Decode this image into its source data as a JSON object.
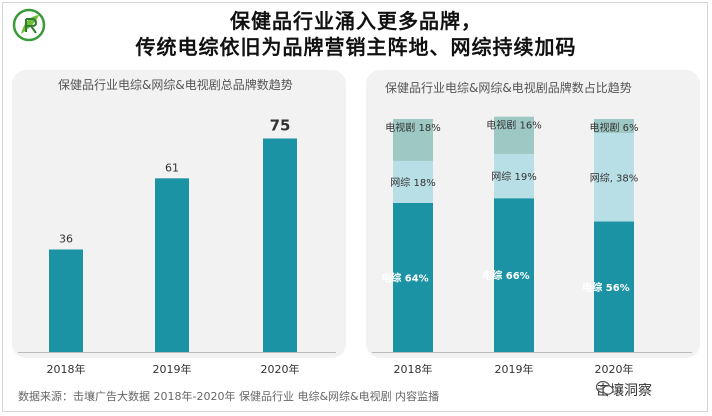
{
  "title_line1": "保健品行业涌入更多品牌，",
  "title_line2": "传统电综依旧为品牌营销主阵地、网综持续加码",
  "source": "数据来源：击壤广告大数据 2018年-2020年 保健品行业 电综&网综&电视剧 内容监播",
  "watermark": "击壤洞察",
  "colors": {
    "teal": "#1b93a4",
    "light": "#b9dfe6",
    "mid": "#9ec8c4",
    "panel": "#f2f2f2"
  },
  "chart_data": [
    {
      "type": "bar",
      "title": "保健品行业电综&网综&电视剧总品牌数趋势",
      "categories": [
        "2018年",
        "2019年",
        "2020年"
      ],
      "values": [
        36,
        61,
        75
      ],
      "value_labels": [
        "36",
        "61",
        "75"
      ],
      "ylim": [
        0,
        85
      ]
    },
    {
      "type": "bar",
      "stacked": true,
      "percent": true,
      "title": "保健品行业电综&网综&电视剧品牌数占比趋势",
      "categories": [
        "2018年",
        "2019年",
        "2020年"
      ],
      "series": [
        {
          "name": "电综",
          "values": [
            64,
            66,
            56
          ],
          "labels": [
            "电综 64%",
            "电综 66%",
            "电综 56%"
          ]
        },
        {
          "name": "网综",
          "values": [
            18,
            19,
            38
          ],
          "labels": [
            "网综 18%",
            "网综 19%",
            "网综, 38%"
          ]
        },
        {
          "name": "电视剧",
          "values": [
            18,
            16,
            6
          ],
          "labels": [
            "电视剧 18%",
            "电视剧 16%",
            "电视剧 6%"
          ]
        }
      ],
      "ylim": [
        0,
        100
      ]
    }
  ]
}
